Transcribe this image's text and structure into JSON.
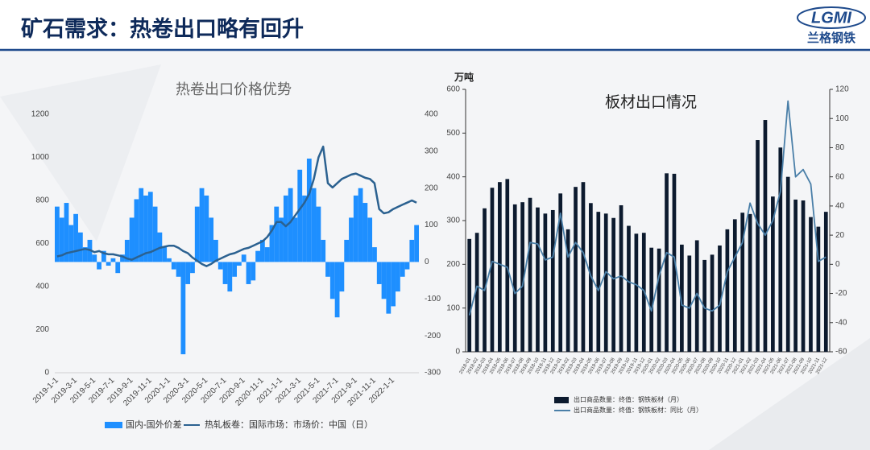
{
  "header": {
    "title": "矿石需求：热卷出口略有回升",
    "logo": "LGMI",
    "brand": "兰格钢铁"
  },
  "chart_data": [
    {
      "type": "combo",
      "title": "热卷出口价格优势",
      "categories": [
        "2019-1-1",
        null,
        null,
        null,
        "2019-3-1",
        null,
        null,
        null,
        "2019-5-1",
        null,
        null,
        null,
        "2019-7-1",
        null,
        null,
        null,
        "2019-9-1",
        null,
        null,
        null,
        "2019-11-1",
        null,
        null,
        null,
        "2020-1-1",
        null,
        null,
        null,
        "2020-3-1",
        null,
        null,
        null,
        "2020-5-1",
        null,
        null,
        null,
        "2020-7-1",
        null,
        null,
        null,
        "2020-9-1",
        null,
        null,
        null,
        "2020-11-1",
        null,
        null,
        null,
        "2021-1-1",
        null,
        null,
        null,
        "2021-3-1",
        null,
        null,
        null,
        "2021-5-1",
        null,
        null,
        null,
        "2021-7-1",
        null,
        null,
        null,
        "2021-9-1",
        null,
        null,
        null,
        "2021-11-1",
        null,
        null,
        null,
        "2022-1-1",
        null,
        null,
        null,
        null,
        null
      ],
      "series": [
        {
          "name": "国内-国外价差",
          "type": "bar",
          "axis": "y2",
          "color": "#1e8fff",
          "values": [
            150,
            120,
            160,
            100,
            130,
            80,
            40,
            60,
            20,
            -20,
            30,
            -10,
            10,
            -30,
            20,
            60,
            120,
            170,
            200,
            180,
            190,
            150,
            80,
            40,
            10,
            -20,
            -40,
            -250,
            -60,
            -30,
            150,
            200,
            180,
            120,
            60,
            -20,
            -60,
            -80,
            -40,
            -10,
            20,
            -60,
            -50,
            30,
            60,
            40,
            100,
            150,
            120,
            180,
            200,
            120,
            250,
            180,
            280,
            200,
            150,
            60,
            -40,
            -100,
            -150,
            -80,
            60,
            120,
            180,
            200,
            160,
            120,
            40,
            -60,
            -100,
            -140,
            -120,
            -80,
            -40,
            -20,
            60,
            100
          ]
        },
        {
          "name": "热轧板卷：国际市场：市场价：中国（日）",
          "type": "line",
          "color": "#2b6190",
          "values": [
            540,
            545,
            555,
            560,
            565,
            570,
            575,
            570,
            560,
            565,
            555,
            550,
            550,
            545,
            540,
            530,
            525,
            535,
            545,
            555,
            560,
            570,
            580,
            585,
            590,
            590,
            580,
            565,
            555,
            535,
            520,
            505,
            495,
            505,
            520,
            530,
            540,
            550,
            555,
            565,
            575,
            580,
            590,
            600,
            610,
            630,
            660,
            700,
            700,
            680,
            700,
            730,
            760,
            790,
            830,
            900,
            1000,
            1050,
            880,
            860,
            880,
            900,
            910,
            920,
            925,
            915,
            905,
            900,
            880,
            760,
            740,
            745,
            760,
            770,
            780,
            790,
            800,
            790
          ]
        }
      ],
      "ylim": [
        0,
        1200
      ],
      "yticks": [
        0,
        200,
        400,
        600,
        800,
        1000,
        1200
      ],
      "y2lim": [
        -300,
        400
      ],
      "y2ticks": [
        -300,
        -200,
        -100,
        0,
        100,
        200,
        300,
        400
      ]
    },
    {
      "type": "combo",
      "title": "板材出口情况",
      "y_unit": "万吨",
      "categories": [
        "2018-01",
        "2018-02",
        "2018-03",
        "2018-04",
        "2018-05",
        "2018-06",
        "2018-07",
        "2018-08",
        "2018-09",
        "2018-10",
        "2018-11",
        "2018-12",
        "2019-01",
        "2019-02",
        "2019-03",
        "2019-04",
        "2019-05",
        "2019-06",
        "2019-07",
        "2019-08",
        "2019-09",
        "2019-10",
        "2019-11",
        "2019-12",
        "2020-01",
        "2020-02",
        "2020-03",
        "2020-04",
        "2020-05",
        "2020-06",
        "2020-07",
        "2020-08",
        "2020-09",
        "2020-10",
        "2020-11",
        "2020-12",
        "2021-01",
        "2021-02",
        "2021-03",
        "2021-04",
        "2021-05",
        "2021-06",
        "2021-07",
        "2021-08",
        "2021-09",
        "2021-10",
        "2021-11",
        "2021-12"
      ],
      "series": [
        {
          "name": "出口商品数量：终值：钢铁板材（月）",
          "type": "bar",
          "color": "#0c1a2e",
          "values": [
            258,
            272,
            328,
            375,
            388,
            395,
            337,
            342,
            352,
            330,
            316,
            324,
            362,
            280,
            377,
            388,
            340,
            320,
            316,
            306,
            335,
            288,
            270,
            272,
            238,
            236,
            408,
            407,
            245,
            220,
            255,
            210,
            222,
            243,
            280,
            303,
            318,
            315,
            484,
            530,
            355,
            467,
            400,
            348,
            346,
            308,
            286,
            320
          ]
        },
        {
          "name": "出口商品数量：终值：钢铁板材：同比（月）",
          "type": "line",
          "axis": "y2",
          "color": "#4a7fa8",
          "values": [
            -35,
            -15,
            -18,
            2,
            0,
            -2,
            -20,
            -15,
            15,
            14,
            3,
            5,
            35,
            5,
            15,
            8,
            -8,
            -18,
            -5,
            -10,
            -8,
            -12,
            -14,
            -18,
            -32,
            -8,
            8,
            5,
            -28,
            -30,
            -20,
            -30,
            -32,
            -28,
            -5,
            5,
            15,
            42,
            28,
            20,
            30,
            50,
            112,
            60,
            65,
            55,
            2,
            5
          ]
        }
      ],
      "ylim": [
        0,
        600
      ],
      "yticks": [
        0,
        100,
        200,
        300,
        400,
        500,
        600
      ],
      "y2lim": [
        -60,
        120
      ],
      "y2ticks": [
        -60,
        -40,
        -20,
        0,
        20,
        40,
        60,
        80,
        100,
        120
      ]
    }
  ]
}
